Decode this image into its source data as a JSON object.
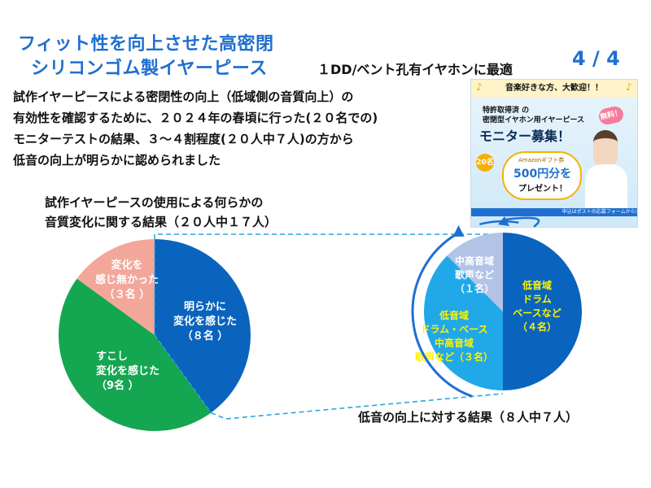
{
  "header": {
    "title_line1": "フィット性を向上させた高密閉",
    "title_line2": "シリコンゴム製イヤーピース",
    "subtitle": "１DD/ベント孔有イヤホンに最適",
    "page": "4 / 4"
  },
  "body": {
    "lines": [
      "試作イヤーピースによる密閉性の向上（低域側の音質向上）の",
      "有効性を確認するために、２０２４年の春頃に行った(２０名での)",
      "モニターテストの結果、３～４割程度(２０人中７人)の方から",
      "低音の向上が明らかに認められました"
    ]
  },
  "flyer": {
    "top": "音楽好きな方、大歓迎！！",
    "sub1": "特許取得済 の",
    "sub2": "密閉型イヤホン用イヤーピース",
    "main": "モニター募集！",
    "badge": "無料！",
    "num": "20名",
    "gift": "Amazonギフト券",
    "amount": "500円分を",
    "present": "プレゼント！",
    "footer": "申込はポストの応募フォームから!",
    "note": "♪"
  },
  "colors": {
    "title_blue": "#1f6fd0",
    "dark_blue": "#0a64bd",
    "green": "#14a650",
    "salmon": "#f3a79a",
    "light_blue": "#21a8e8",
    "lavender": "#b3c3e6",
    "connector": "#2aa7dc",
    "yellow_text": "#fff200"
  },
  "chart_data": [
    {
      "type": "pie",
      "title_lines": [
        "試作イヤーピースの使用による何らかの",
        "音質変化に関する結果（２０人中１７人）"
      ],
      "slices": [
        {
          "label_lines": [
            "明らかに",
            "変化を感じた",
            "（８名 ）"
          ],
          "value": 8,
          "color": "#0a64bd",
          "text_color": "#ffffff"
        },
        {
          "label_lines": [
            "すこし",
            "変化を感じた",
            "（9名 ）"
          ],
          "value": 9,
          "color": "#14a650",
          "text_color": "#ffffff"
        },
        {
          "label_lines": [
            "変化を",
            "感じ無かった",
            "（３名 ）"
          ],
          "value": 3,
          "color": "#f3a79a",
          "text_color": "#ffffff"
        }
      ]
    },
    {
      "type": "pie",
      "title": "低音の向上に対する結果（８人中７人）",
      "slices": [
        {
          "label_lines": [
            "低音域",
            "ドラム",
            "ベースなど",
            "（４名）"
          ],
          "value": 4,
          "color": "#0a64bd",
          "text_color": "#fff200"
        },
        {
          "label_lines": [
            "低音域",
            "ドラム・ベース",
            "中高音域",
            "歌声など（３名）"
          ],
          "value": 3,
          "color": "#21a8e8",
          "text_color": "#fff200"
        },
        {
          "label_lines": [
            "中高音域",
            "歌声など",
            "（１名）"
          ],
          "value": 1,
          "color": "#b3c3e6",
          "text_color": "#ffffff"
        }
      ]
    }
  ]
}
